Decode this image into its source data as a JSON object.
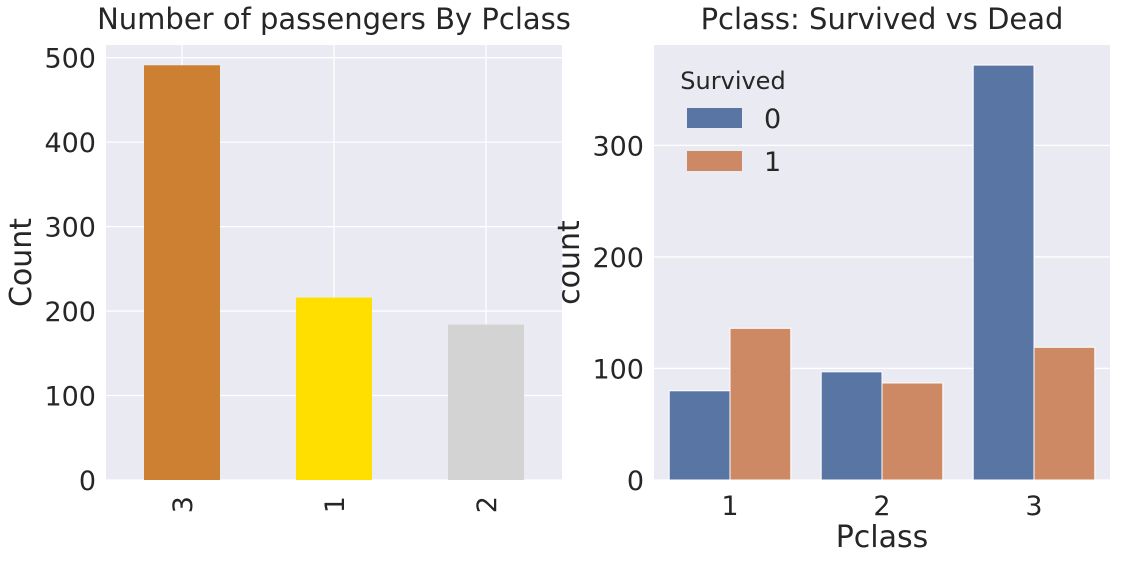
{
  "chart_data": [
    {
      "type": "bar",
      "title": "Number of passengers By Pclass",
      "xlabel": "",
      "ylabel": "Count",
      "categories": [
        "3",
        "1",
        "2"
      ],
      "values": [
        491,
        216,
        184
      ],
      "colors": [
        "#CD7F32",
        "#FFDF00",
        "#D3D3D3"
      ],
      "ylim": [
        0,
        515
      ],
      "yticks": [
        0,
        100,
        200,
        300,
        400,
        500
      ],
      "xtick_rotation": "vertical",
      "grid": true,
      "background": "#EAEAF2"
    },
    {
      "type": "bar",
      "title": "Pclass: Survived vs Dead",
      "xlabel": "Pclass",
      "ylabel": "count",
      "categories": [
        "1",
        "2",
        "3"
      ],
      "legend": {
        "title": "Survived",
        "placement": "top-left"
      },
      "series": [
        {
          "name": "0",
          "values": [
            80,
            97,
            372
          ],
          "color": "#5975A4"
        },
        {
          "name": "1",
          "values": [
            136,
            87,
            119
          ],
          "color": "#CC8963"
        }
      ],
      "ylim": [
        0,
        390
      ],
      "yticks": [
        0,
        100,
        200,
        300
      ],
      "grid": true,
      "background": "#EAEAF2"
    }
  ]
}
